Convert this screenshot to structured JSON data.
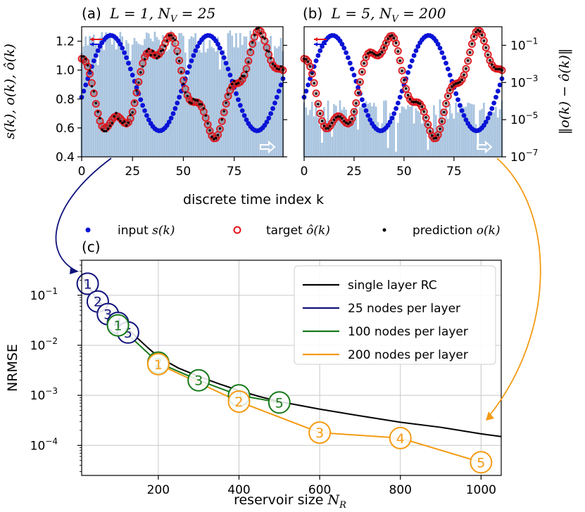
{
  "colors": {
    "input": "#0a13d6",
    "target": "#e3141a",
    "prediction": "#000000",
    "error_bars": "#a9c4df",
    "single": "#000000",
    "n25": "#10127a",
    "n100": "#187a1a",
    "n200": "#f49b14",
    "circle_fill_dark": "#6e3a3a"
  },
  "chart_data": [
    {
      "id": "a",
      "type": "scatter",
      "title": "(a) L = 1, N_V = 25",
      "title_prefix": "(a)",
      "title_math": "L = 1, N",
      "title_sub": "V",
      "title_tail": " = 25",
      "xlim": [
        0,
        99
      ],
      "ylim": [
        0.4,
        1.3
      ],
      "xticks": [
        0,
        25,
        50,
        75
      ],
      "xtick_labels": [
        "0",
        "25",
        "50",
        "75"
      ],
      "yticks": [
        0.4,
        0.6,
        0.8,
        1.0,
        1.2
      ],
      "ytick_labels": [
        "0.4",
        "0.6",
        "0.8",
        "1.0",
        "1.2"
      ],
      "ylabel": "s(k), o(k), ô(k)",
      "error_ylim_log10": [
        -7,
        0
      ],
      "error_level_log10": -0.8,
      "error_noise": 0.6,
      "series_params": {
        "input": {
          "base": 0.91,
          "amps": [
            0.33
          ],
          "periods": [
            48
          ],
          "phases": [
            -0.3
          ]
        },
        "target": {
          "base": 0.9,
          "amps": [
            0.3,
            0.08
          ],
          "periods": [
            48,
            14
          ],
          "phases": [
            2.6,
            0.3
          ]
        },
        "prediction_noise": 0.025
      }
    },
    {
      "id": "b",
      "type": "scatter",
      "title": "(b) L = 5, N_V = 200",
      "title_prefix": "(b)",
      "title_math": "L = 5, N",
      "title_sub": "V",
      "title_tail": " = 200",
      "xlim": [
        0,
        99
      ],
      "ylim": [
        0.4,
        1.3
      ],
      "xticks": [
        0,
        25,
        50,
        75
      ],
      "xtick_labels": [
        "0",
        "25",
        "50",
        "75"
      ],
      "error_ylim_log10": [
        -7,
        0
      ],
      "error_yticks_log10": [
        -7,
        -5,
        -3,
        -1
      ],
      "error_ytick_labels": [
        "10",
        "10",
        "10",
        "10"
      ],
      "error_ytick_exponents": [
        "−7",
        "−5",
        "−3",
        "−1"
      ],
      "error_ylabel": "‖o(k) − ô(k)‖",
      "error_level_log10": -4.6,
      "error_noise": 0.7,
      "series_params": {
        "input": {
          "base": 0.91,
          "amps": [
            0.33
          ],
          "periods": [
            48
          ],
          "phases": [
            -0.3
          ]
        },
        "target": {
          "base": 0.9,
          "amps": [
            0.3,
            0.08
          ],
          "periods": [
            48,
            14
          ],
          "phases": [
            2.6,
            0.3
          ]
        },
        "prediction_noise": 0.003
      }
    },
    {
      "id": "c",
      "type": "line",
      "title": "(c)",
      "xlabel": "reservoir size N_R",
      "xlabel_text": "reservoir size ",
      "xlabel_math": "N",
      "xlabel_sub": "R",
      "ylabel": "NRMSE",
      "xlim": [
        10,
        1050
      ],
      "ylim_log10": [
        -4.6,
        -0.3
      ],
      "xticks": [
        200,
        400,
        600,
        800,
        1000
      ],
      "xtick_labels": [
        "200",
        "400",
        "600",
        "800",
        "1000"
      ],
      "yticks_log10": [
        -4,
        -3,
        -2,
        -1
      ],
      "ytick_labels": [
        "10",
        "10",
        "10",
        "10"
      ],
      "ytick_exponents": [
        "−4",
        "−3",
        "−2",
        "−1"
      ],
      "grid": true,
      "series": [
        {
          "name": "single layer RC",
          "color_key": "single",
          "marker": "none",
          "x": [
            10,
            25,
            50,
            75,
            100,
            125,
            150,
            175,
            200,
            250,
            300,
            350,
            400,
            450,
            500,
            600,
            700,
            800,
            900,
            1000,
            1050
          ],
          "y": [
            0.25,
            0.15,
            0.08,
            0.048,
            0.031,
            0.021,
            0.0135,
            0.0088,
            0.0059,
            0.0035,
            0.0024,
            0.0017,
            0.00125,
            0.00095,
            0.00075,
            0.00053,
            0.00039,
            0.00029,
            0.00023,
            0.00017,
            0.00015
          ]
        },
        {
          "name": "25 nodes per layer",
          "color_key": "n25",
          "marker": "circle-num",
          "x": [
            25,
            50,
            75,
            100,
            125
          ],
          "y": [
            0.17,
            0.075,
            0.042,
            0.028,
            0.018
          ],
          "labels": [
            "1",
            "2",
            "3",
            "4",
            "5"
          ]
        },
        {
          "name": "100 nodes per layer",
          "color_key": "n100",
          "marker": "circle-num",
          "x": [
            100,
            200,
            300,
            400,
            500
          ],
          "y": [
            0.025,
            0.0045,
            0.002,
            0.001,
            0.00072
          ],
          "labels": [
            "1",
            "2",
            "3",
            "4",
            "5"
          ]
        },
        {
          "name": "200 nodes per layer",
          "color_key": "n200",
          "marker": "circle-num",
          "x": [
            200,
            400,
            600,
            800,
            1000
          ],
          "y": [
            0.0042,
            0.00075,
            0.00018,
            0.00014,
            4.6e-05
          ],
          "labels": [
            "1",
            "2",
            "3",
            "4",
            "5"
          ]
        }
      ],
      "legend_location": "top-right"
    }
  ],
  "shared": {
    "xlabel_top": "discrete time index k",
    "legend_top": [
      {
        "key": "input",
        "label": "input ",
        "math": "s(k)",
        "marker": "dot-blue"
      },
      {
        "key": "target",
        "label": "target ",
        "math": "ô(k)",
        "marker": "ring-red"
      },
      {
        "key": "prediction",
        "label": "prediction ",
        "math": "o(k)",
        "marker": "dot-black"
      }
    ]
  }
}
